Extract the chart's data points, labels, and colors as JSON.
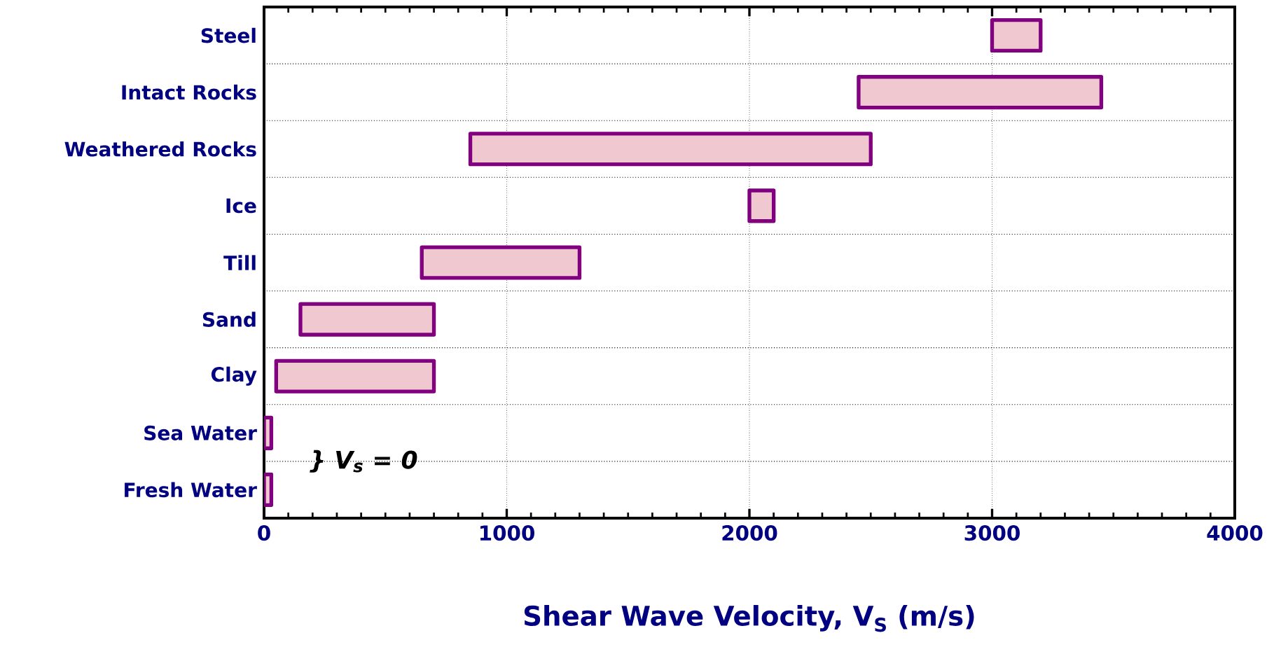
{
  "chart_data": {
    "type": "bar",
    "orientation": "horizontal",
    "xlabel": "Shear Wave Velocity, V$_{S}$ (m/s)",
    "categories": [
      "Steel",
      "Intact Rocks",
      "Weathered Rocks",
      "Ice",
      "Till",
      "Sand",
      "Clay",
      "Sea Water",
      "Fresh Water"
    ],
    "base": [
      3000,
      2450,
      850,
      2000,
      650,
      150,
      50,
      0,
      0
    ],
    "values": [
      200,
      1000,
      1650,
      100,
      650,
      550,
      650,
      30,
      30
    ],
    "color": "#800080",
    "xlim": [
      0,
      4000
    ],
    "xticks": [
      0,
      1000,
      2000,
      3000,
      4000
    ],
    "grid": true,
    "annotations": [
      "} V$_{s}$ = 0"
    ]
  }
}
